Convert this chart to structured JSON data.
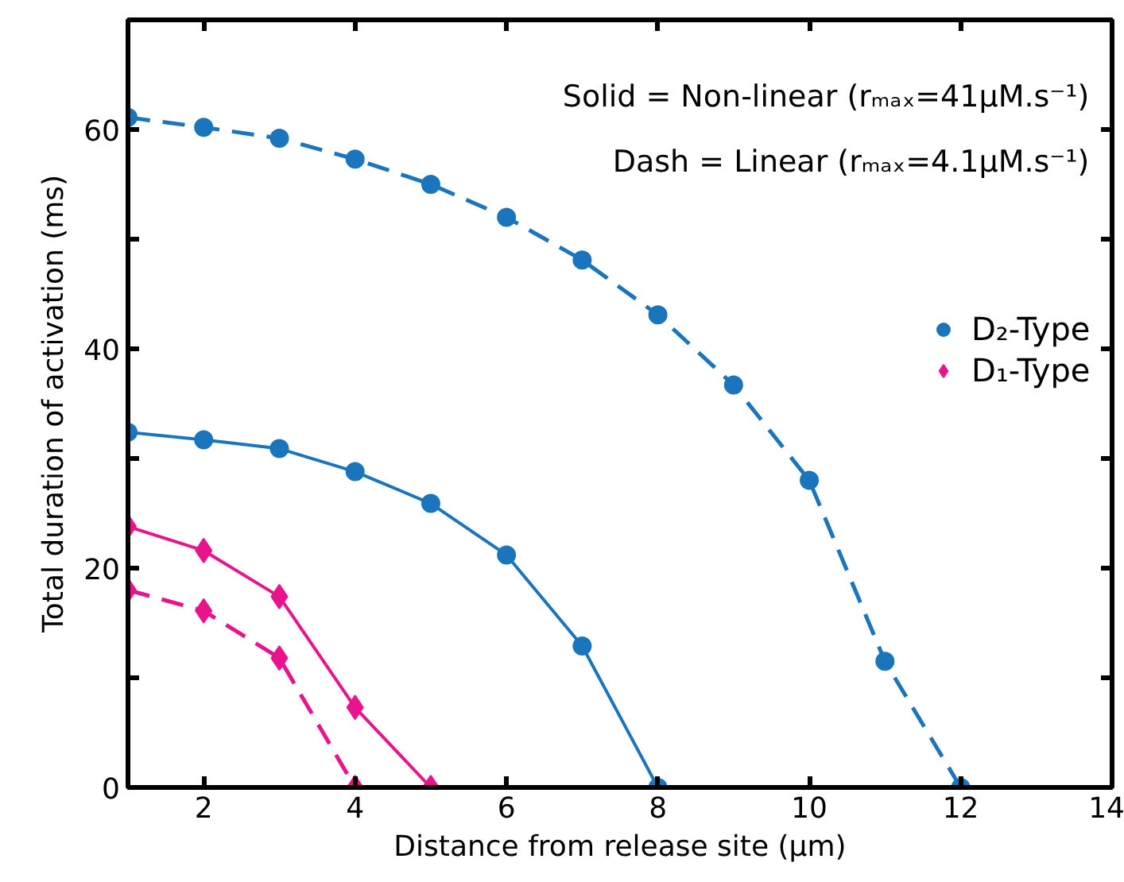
{
  "chart_data": {
    "type": "line",
    "x": [
      1,
      2,
      3,
      4,
      5,
      6,
      7,
      8,
      9,
      10,
      11,
      12
    ],
    "series": [
      {
        "name": "D₂-Type",
        "color": "#1a75bc",
        "marker": "circle",
        "line_style": "solid",
        "values": [
          32.4,
          31.7,
          30.9,
          28.8,
          25.9,
          21.2,
          12.9,
          0,
          null,
          null,
          null,
          null
        ]
      },
      {
        "color": "#1a75bc",
        "marker": "circle",
        "line_style": "dashed",
        "values": [
          61.1,
          60.2,
          59.2,
          57.3,
          55.0,
          52.0,
          48.1,
          43.1,
          36.7,
          28.0,
          11.5,
          0
        ]
      },
      {
        "name": "D₁-Type",
        "color": "#e8148c",
        "marker": "diamond",
        "line_style": "solid",
        "values": [
          23.8,
          21.6,
          17.4,
          7.3,
          0,
          null,
          null,
          null,
          null,
          null,
          null,
          null
        ]
      },
      {
        "color": "#e8148c",
        "marker": "diamond",
        "line_style": "dashed",
        "values": [
          18.0,
          16.1,
          11.8,
          0,
          null,
          null,
          null,
          null,
          null,
          null,
          null,
          null
        ]
      }
    ],
    "xlabel": "Distance from release site (μm)",
    "ylabel": "Total duration of activation (ms)",
    "annotations": [
      "Solid = Non-linear (rₘₐₓ=41μM.s⁻¹)",
      "Dash = Linear (rₘₐₓ=4.1μM.s⁻¹)"
    ],
    "xlim": [
      1,
      14
    ],
    "ylim": [
      0,
      70
    ],
    "xticks": [
      2,
      4,
      6,
      8,
      10,
      12,
      14
    ],
    "yticks": [
      0,
      {
        "value": 10,
        "label": null
      },
      20,
      {
        "value": 30,
        "label": null
      },
      40,
      {
        "value": 50,
        "label": null
      },
      60
    ],
    "grid": false,
    "legend": "right"
  }
}
